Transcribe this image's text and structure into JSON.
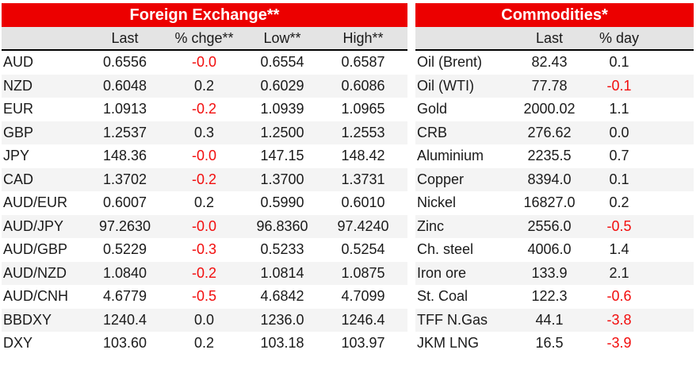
{
  "colors": {
    "header_red": "#ec0000",
    "negative_value_red": "#f20d0d",
    "column_header_gray": "#e4e4e4",
    "row_stripe_gray": "#f4f4f4"
  },
  "fx": {
    "title": "Foreign Exchange**",
    "columns": [
      "",
      "Last",
      "% chge**",
      "Low**",
      "High**"
    ],
    "rows": [
      {
        "label": "AUD",
        "last": "0.6556",
        "chge": "-0.0",
        "low": "0.6554",
        "high": "0.6587"
      },
      {
        "label": "NZD",
        "last": "0.6048",
        "chge": "0.2",
        "low": "0.6029",
        "high": "0.6086"
      },
      {
        "label": "EUR",
        "last": "1.0913",
        "chge": "-0.2",
        "low": "1.0939",
        "high": "1.0965"
      },
      {
        "label": "GBP",
        "last": "1.2537",
        "chge": "0.3",
        "low": "1.2500",
        "high": "1.2553"
      },
      {
        "label": "JPY",
        "last": "148.36",
        "chge": "-0.0",
        "low": "147.15",
        "high": "148.42"
      },
      {
        "label": "CAD",
        "last": "1.3702",
        "chge": "-0.2",
        "low": "1.3700",
        "high": "1.3731"
      },
      {
        "label": "AUD/EUR",
        "last": "0.6007",
        "chge": "0.2",
        "low": "0.5990",
        "high": "0.6010"
      },
      {
        "label": "AUD/JPY",
        "last": "97.2630",
        "chge": "-0.0",
        "low": "96.8360",
        "high": "97.4240"
      },
      {
        "label": "AUD/GBP",
        "last": "0.5229",
        "chge": "-0.3",
        "low": "0.5233",
        "high": "0.5254"
      },
      {
        "label": "AUD/NZD",
        "last": "1.0840",
        "chge": "-0.2",
        "low": "1.0814",
        "high": "1.0875"
      },
      {
        "label": "AUD/CNH",
        "last": "4.6779",
        "chge": "-0.5",
        "low": "4.6842",
        "high": "4.7099"
      },
      {
        "label": "BBDXY",
        "last": "1240.4",
        "chge": "0.0",
        "low": "1236.0",
        "high": "1246.4"
      },
      {
        "label": "DXY",
        "last": "103.60",
        "chge": "0.2",
        "low": "103.18",
        "high": "103.97"
      }
    ]
  },
  "commodities": {
    "title": "Commodities*",
    "columns": [
      "",
      "Last",
      "% day"
    ],
    "rows": [
      {
        "label": "Oil (Brent)",
        "last": "82.43",
        "day": "0.1"
      },
      {
        "label": "Oil (WTI)",
        "last": "77.78",
        "day": "-0.1"
      },
      {
        "label": "Gold",
        "last": "2000.02",
        "day": "1.1"
      },
      {
        "label": "CRB",
        "last": "276.62",
        "day": "0.0"
      },
      {
        "label": "Aluminium",
        "last": "2235.5",
        "day": "0.7"
      },
      {
        "label": "Copper",
        "last": "8394.0",
        "day": "0.1"
      },
      {
        "label": "Nickel",
        "last": "16827.0",
        "day": "0.2"
      },
      {
        "label": "Zinc",
        "last": "2556.0",
        "day": "-0.5"
      },
      {
        "label": "Ch. steel",
        "last": "4006.0",
        "day": "1.4"
      },
      {
        "label": "Iron ore",
        "last": "133.9",
        "day": "2.1"
      },
      {
        "label": "St. Coal",
        "last": "122.3",
        "day": "-0.6"
      },
      {
        "label": "TFF N.Gas",
        "last": "44.1",
        "day": "-3.8"
      },
      {
        "label": "JKM LNG",
        "last": "16.5",
        "day": "-3.9"
      }
    ]
  }
}
